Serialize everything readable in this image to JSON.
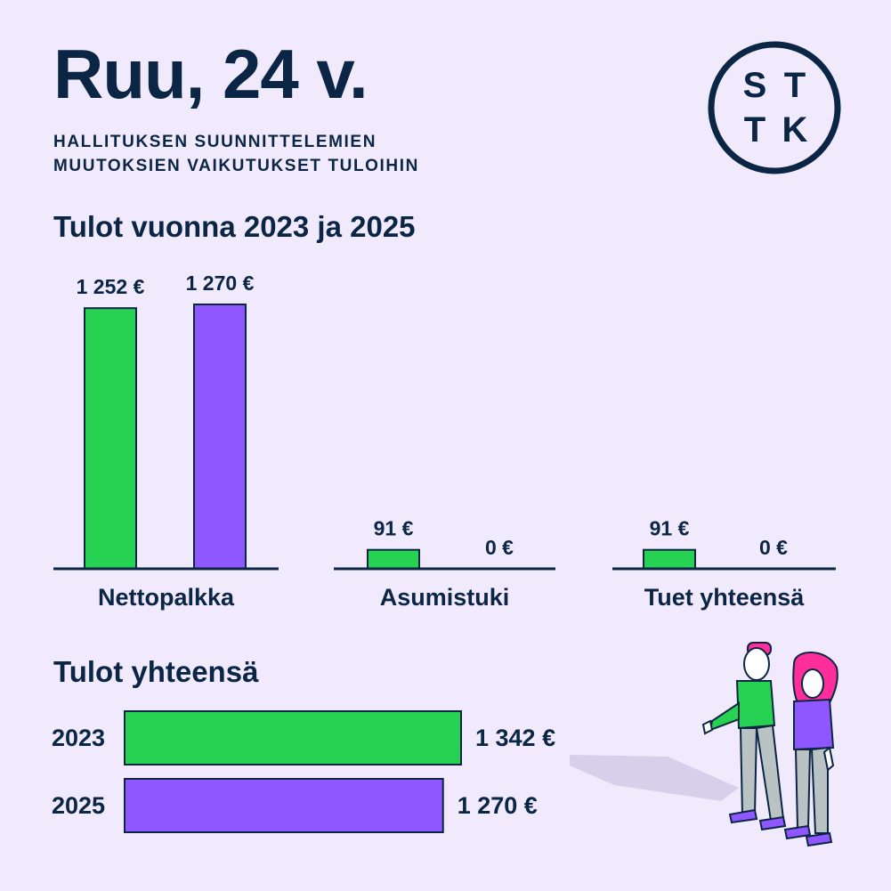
{
  "header": {
    "title": "Ruu, 24 v.",
    "subtitle_line1": "HALLITUKSEN SUUNNITTELEMIEN",
    "subtitle_line2": "MUUTOKSIEN VAIKUTUKSET TULOIHIN"
  },
  "logo": {
    "letters": [
      "S",
      "T",
      "T",
      "K"
    ]
  },
  "colors": {
    "green": "#27d152",
    "purple": "#8f57ff",
    "navy": "#0b2545",
    "background": "#f1eafd",
    "pink": "#ff2e9a"
  },
  "chart_data": [
    {
      "type": "bar",
      "title": "Tulot vuonna 2023 ja 2025",
      "groups": [
        {
          "label": "Nettopalkka",
          "values": [
            1252,
            1270
          ],
          "value_labels": [
            "1 252 €",
            "1 270 €"
          ]
        },
        {
          "label": "Asumistuki",
          "values": [
            91,
            0
          ],
          "value_labels": [
            "91 €",
            "0 €"
          ]
        },
        {
          "label": "Tuet yhteensä",
          "values": [
            91,
            0
          ],
          "value_labels": [
            "91 €",
            "0 €"
          ]
        }
      ],
      "series_colors": [
        "#27d152",
        "#8f57ff"
      ]
    },
    {
      "type": "bar",
      "orientation": "horizontal",
      "title": "Tulot yhteensä",
      "categories": [
        "2023",
        "2025"
      ],
      "values": [
        1342,
        1270
      ],
      "value_labels": [
        "1 342 €",
        "1 270 €"
      ],
      "series_colors": [
        "#27d152",
        "#8f57ff"
      ]
    }
  ]
}
